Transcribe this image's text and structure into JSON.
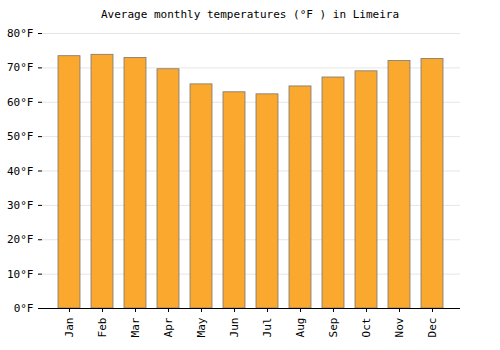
{
  "chart_data": {
    "type": "bar",
    "title": "Average monthly temperatures (°F ) in Limeira",
    "categories": [
      "Jan",
      "Feb",
      "Mar",
      "Apr",
      "May",
      "Jun",
      "Jul",
      "Aug",
      "Sep",
      "Oct",
      "Nov",
      "Dec"
    ],
    "values": [
      73.4,
      73.8,
      72.9,
      69.6,
      65.2,
      62.9,
      62.3,
      64.6,
      67.2,
      69.0,
      72.0,
      72.6
    ],
    "color": "#fba82e",
    "ylim": [
      0,
      80
    ],
    "yticks": [
      {
        "value": 0,
        "label": "0°F"
      },
      {
        "value": 10,
        "label": "10°F"
      },
      {
        "value": 20,
        "label": "20°F"
      },
      {
        "value": 30,
        "label": "30°F"
      },
      {
        "value": 40,
        "label": "40°F"
      },
      {
        "value": 50,
        "label": "50°F"
      },
      {
        "value": 60,
        "label": "60°F"
      },
      {
        "value": 70,
        "label": "70°F"
      },
      {
        "value": 80,
        "label": "80°F"
      }
    ],
    "grid": true
  }
}
